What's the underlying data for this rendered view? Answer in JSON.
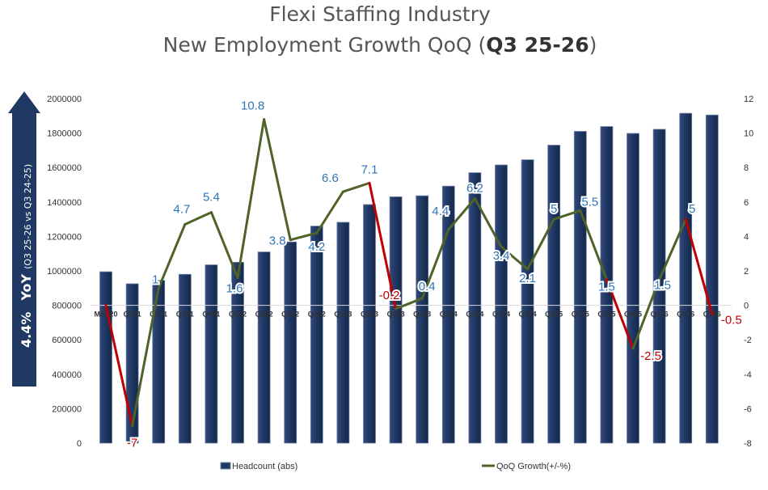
{
  "chart_data": {
    "type": "bar+line",
    "title_line1": "Flexi Staffing Industry",
    "title_line2_prefix": "New Employment Growth QoQ (",
    "title_line2_bold": "Q3 25-26",
    "title_line2_suffix": ")",
    "categories": [
      "Mar-20",
      "Q121",
      "Q221",
      "Q321",
      "Q421",
      "Q122",
      "Q222",
      "Q322",
      "Q422",
      "Q123",
      "Q223",
      "Q323",
      "Q423",
      "Q124",
      "Q224",
      "Q324",
      "Q424",
      "Q125",
      "Q225",
      "Q325",
      "Q425",
      "Q126",
      "Q226",
      "Q326"
    ],
    "series": [
      {
        "name": "Headcount (abs)",
        "type": "bar",
        "axis": "left",
        "color": "#1f3864",
        "values": [
          995000,
          925000,
          945000,
          980000,
          1035000,
          1050000,
          1110000,
          1168000,
          1260000,
          1282000,
          1385000,
          1430000,
          1436000,
          1492000,
          1570000,
          1615000,
          1645000,
          1730000,
          1810000,
          1838000,
          1798000,
          1822000,
          1915000,
          1905000
        ]
      },
      {
        "name": "QoQ Growth(+/-%)",
        "type": "line",
        "axis": "right",
        "color": "#4f6228",
        "negative_color": "#c00000",
        "values": [
          0,
          -7,
          1,
          4.7,
          5.4,
          1.6,
          10.8,
          3.8,
          4.2,
          6.6,
          7.1,
          -0.2,
          0.4,
          4.4,
          6.2,
          3.4,
          2.1,
          5,
          5.5,
          1.5,
          -2.5,
          1.5,
          5,
          -0.5
        ],
        "labels": [
          "",
          "-7",
          "1",
          "4.7",
          "5.4",
          "1.6",
          "10.8",
          "3.8",
          "4.2",
          "6.6",
          "7.1",
          "-0.2",
          "0.4",
          "4.4",
          "6.2",
          "3.4",
          "2.1",
          "5",
          "5.5",
          "1.5",
          "-2.5",
          "1.5",
          "5",
          "-0.5"
        ]
      }
    ],
    "left_axis": {
      "min": 0,
      "max": 2000000,
      "step": 200000,
      "ticks": [
        "0",
        "200000",
        "400000",
        "600000",
        "800000",
        "1000000",
        "1200000",
        "1400000",
        "1600000",
        "1800000",
        "2000000"
      ]
    },
    "right_axis": {
      "min": -8,
      "max": 12,
      "step": 2,
      "ticks": [
        "-8",
        "-6",
        "-4",
        "-2",
        "0",
        "2",
        "4",
        "6",
        "8",
        "10",
        "12"
      ]
    },
    "legend": [
      "Headcount (abs)",
      "QoQ Growth(+/-%)"
    ],
    "legend_position": "bottom"
  },
  "yoy_callout": {
    "value": "4.4%",
    "label": "YoY",
    "period": "(Q3 25-26 vs Q3 24-25)",
    "color": "#1f3864"
  },
  "colors": {
    "positive_label": "#2e75b6",
    "negative_label": "#c00000"
  }
}
